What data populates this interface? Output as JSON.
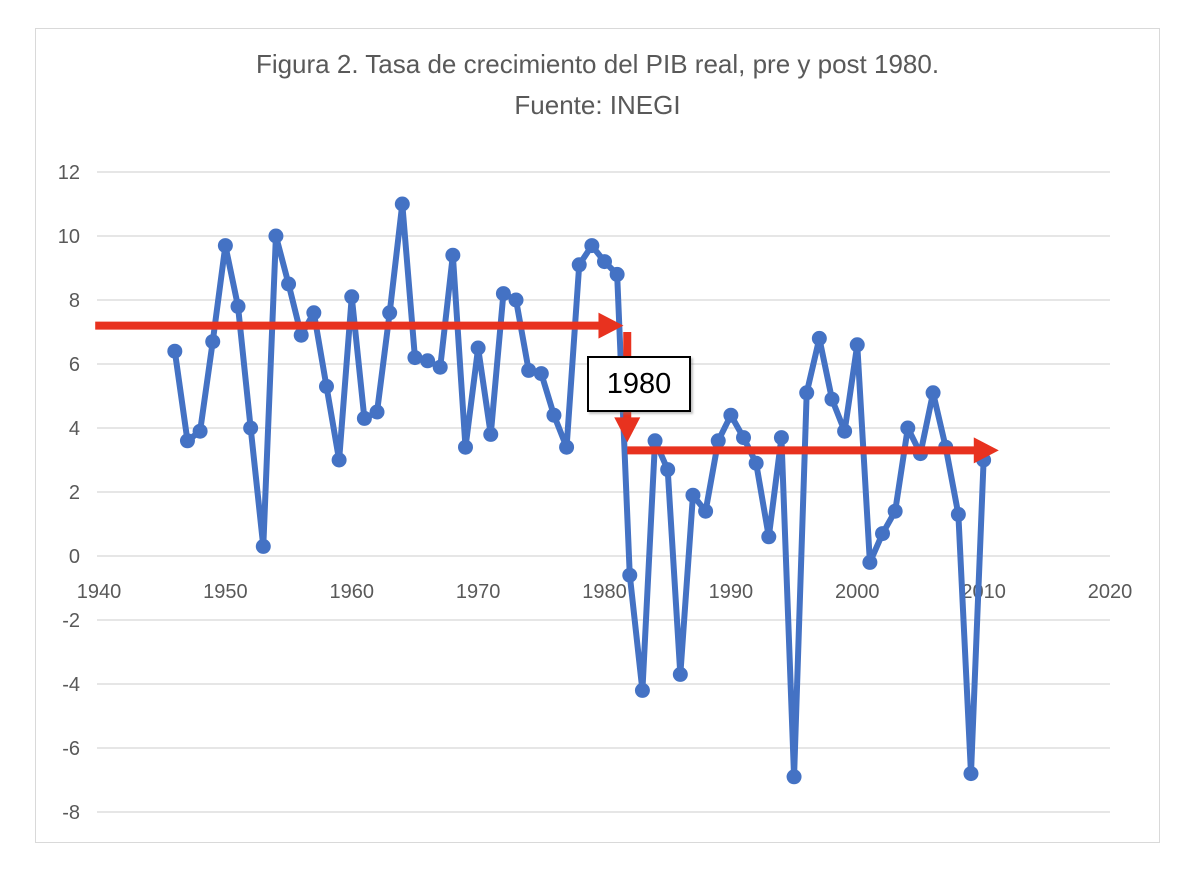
{
  "figure": {
    "title_line1": "Figura 2. Tasa de crecimiento del PIB real, pre y post 1980.",
    "title_line2": "Fuente: INEGI",
    "annotation_label": "1980"
  },
  "colors": {
    "series": "#4472C4",
    "arrow": "#E8321F",
    "grid": "#D6D6D6",
    "tick_text": "#595959",
    "frame": "#D9D9D9",
    "annotation_box_border": "#000000"
  },
  "chart_data": {
    "type": "line",
    "title": "Figura 2. Tasa de crecimiento del PIB real, pre y post 1980.",
    "subtitle": "Fuente: INEGI",
    "xlabel": "",
    "ylabel": "",
    "xlim": [
      1940,
      2020
    ],
    "ylim": [
      -8,
      12
    ],
    "x_ticks": [
      1940,
      1950,
      1960,
      1970,
      1980,
      1990,
      2000,
      2010,
      2020
    ],
    "y_ticks": [
      12,
      10,
      8,
      6,
      4,
      2,
      0,
      -2,
      -4,
      -6,
      -8
    ],
    "grid": "horizontal",
    "legend": "none",
    "x": [
      1946,
      1947,
      1948,
      1949,
      1950,
      1951,
      1952,
      1953,
      1954,
      1955,
      1956,
      1957,
      1958,
      1959,
      1960,
      1961,
      1962,
      1963,
      1964,
      1965,
      1966,
      1967,
      1968,
      1969,
      1970,
      1971,
      1972,
      1973,
      1974,
      1975,
      1976,
      1977,
      1978,
      1979,
      1980,
      1981,
      1982,
      1983,
      1984,
      1985,
      1986,
      1987,
      1988,
      1989,
      1990,
      1991,
      1992,
      1993,
      1994,
      1995,
      1996,
      1997,
      1998,
      1999,
      2000,
      2001,
      2002,
      2003,
      2004,
      2005,
      2006,
      2007,
      2008,
      2009,
      2010
    ],
    "values": [
      6.4,
      3.6,
      3.9,
      6.7,
      9.7,
      7.8,
      4.0,
      0.3,
      10.0,
      8.5,
      6.9,
      7.6,
      5.3,
      3.0,
      8.1,
      4.3,
      4.5,
      7.6,
      11.0,
      6.2,
      6.1,
      5.9,
      9.4,
      3.4,
      6.5,
      3.8,
      8.2,
      8.0,
      5.8,
      5.7,
      4.4,
      3.4,
      9.1,
      9.7,
      9.2,
      8.8,
      -0.6,
      -4.2,
      3.6,
      2.7,
      -3.7,
      1.9,
      1.4,
      3.6,
      4.4,
      3.7,
      2.9,
      0.6,
      3.7,
      -6.9,
      5.1,
      6.8,
      4.9,
      3.9,
      6.6,
      -0.2,
      0.7,
      1.4,
      4.0,
      3.2,
      5.1,
      3.4,
      1.3,
      -6.8,
      3.0
    ],
    "annotations": {
      "mean_lines": [
        {
          "name": "pre-1980",
          "value": 7.2,
          "from_year": 1939.7,
          "to_year": 1981.5
        },
        {
          "name": "post-1980",
          "value": 3.3,
          "from_year": 1981.8,
          "to_year": 2011.2
        }
      ],
      "drop_arrow": {
        "year": 1981.8,
        "from_value": 7.0,
        "to_value": 3.55
      },
      "divider_label": "1980"
    }
  }
}
